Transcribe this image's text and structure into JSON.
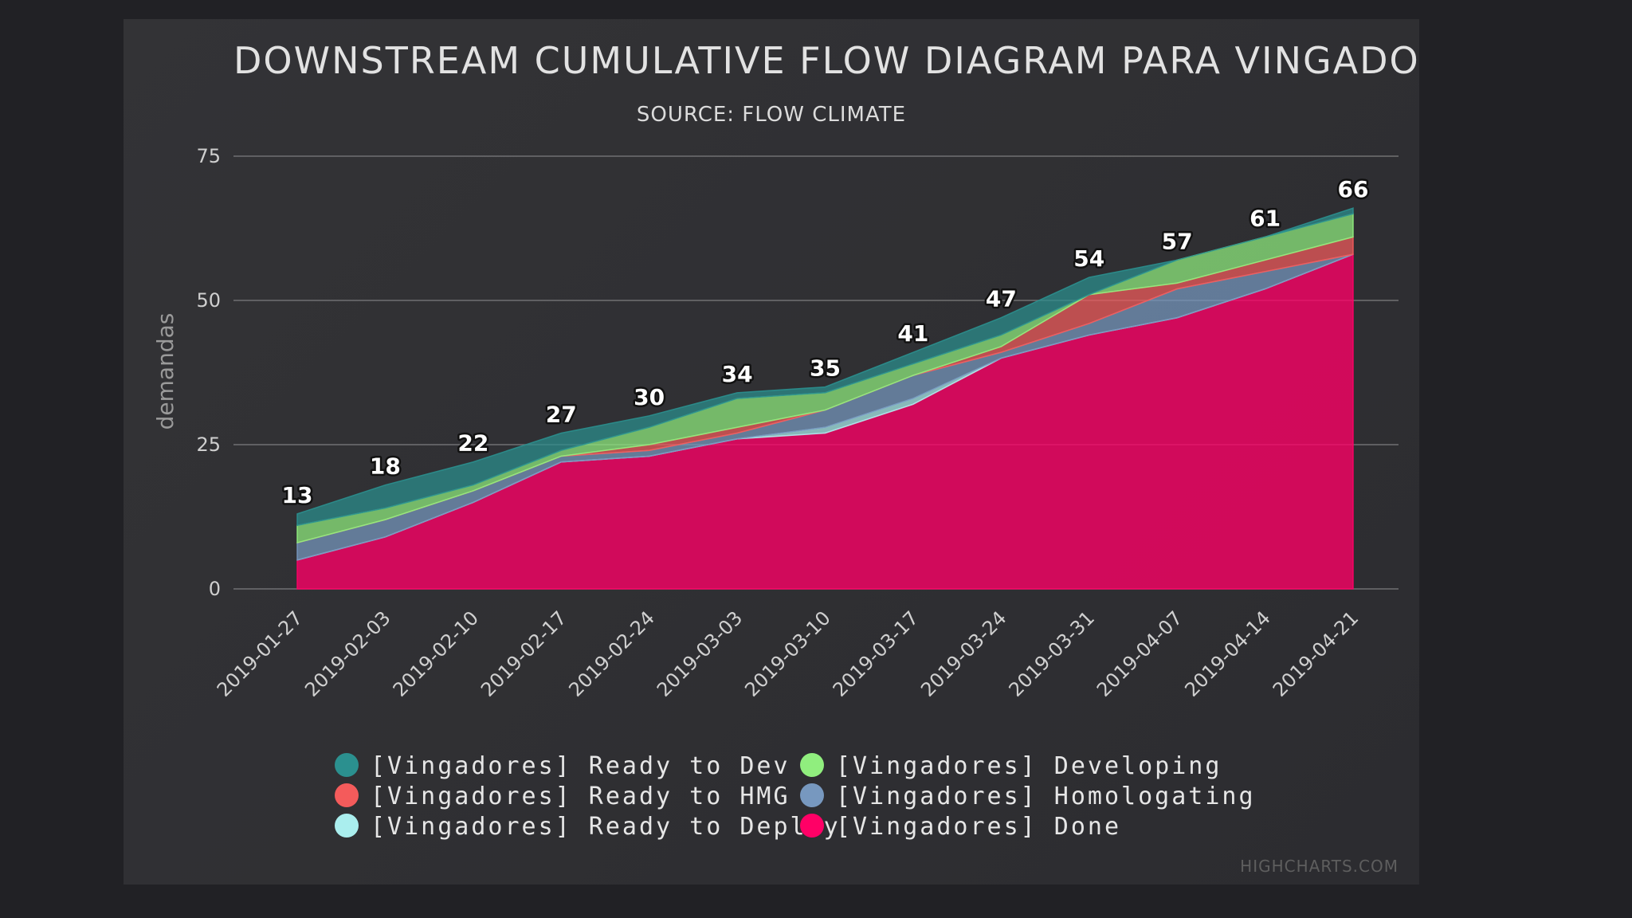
{
  "chart_data": {
    "type": "area",
    "stacking": "normal",
    "title": "DOWNSTREAM CUMULATIVE FLOW DIAGRAM PARA VINGADORES",
    "subtitle": "SOURCE: FLOW CLIMATE",
    "xlabel": "",
    "ylabel": "demandas",
    "ylim": [
      0,
      75
    ],
    "yticks": [
      0,
      25,
      50,
      75
    ],
    "grid": true,
    "legend_position": "bottom",
    "credits": "Highcharts.com",
    "categories": [
      "2019-01-27",
      "2019-02-03",
      "2019-02-10",
      "2019-02-17",
      "2019-02-24",
      "2019-03-03",
      "2019-03-10",
      "2019-03-17",
      "2019-03-24",
      "2019-03-31",
      "2019-04-07",
      "2019-04-14",
      "2019-04-21"
    ],
    "totals": [
      13,
      18,
      22,
      27,
      30,
      34,
      35,
      41,
      47,
      54,
      57,
      61,
      66
    ],
    "series": [
      {
        "name": "[Vingadores] Ready to Dev",
        "color": "#2b908f",
        "values": [
          2,
          4,
          4,
          3,
          2,
          1,
          1,
          2,
          3,
          3,
          0,
          0,
          1
        ]
      },
      {
        "name": "[Vingadores] Developing",
        "color": "#90ee7e",
        "values": [
          3,
          2,
          1,
          1,
          3,
          5,
          3,
          2,
          2,
          0,
          4,
          4,
          4
        ]
      },
      {
        "name": "[Vingadores] Ready to HMG",
        "color": "#f45b5b",
        "values": [
          0,
          0,
          0,
          0,
          1,
          1,
          0,
          0,
          1,
          5,
          1,
          2,
          3
        ]
      },
      {
        "name": "[Vingadores] Homologating",
        "color": "#7798bf",
        "values": [
          3,
          3,
          2,
          1,
          1,
          1,
          3,
          4,
          1,
          2,
          5,
          3,
          0
        ]
      },
      {
        "name": "[Vingadores] Ready to Deploy",
        "color": "#aaeeee",
        "values": [
          0,
          0,
          0,
          0,
          0,
          0,
          1,
          1,
          0,
          0,
          0,
          0,
          0
        ]
      },
      {
        "name": "[Vingadores] Done",
        "color": "#ff0066",
        "values": [
          5,
          9,
          15,
          22,
          23,
          26,
          27,
          32,
          40,
          44,
          47,
          52,
          58
        ]
      }
    ]
  }
}
